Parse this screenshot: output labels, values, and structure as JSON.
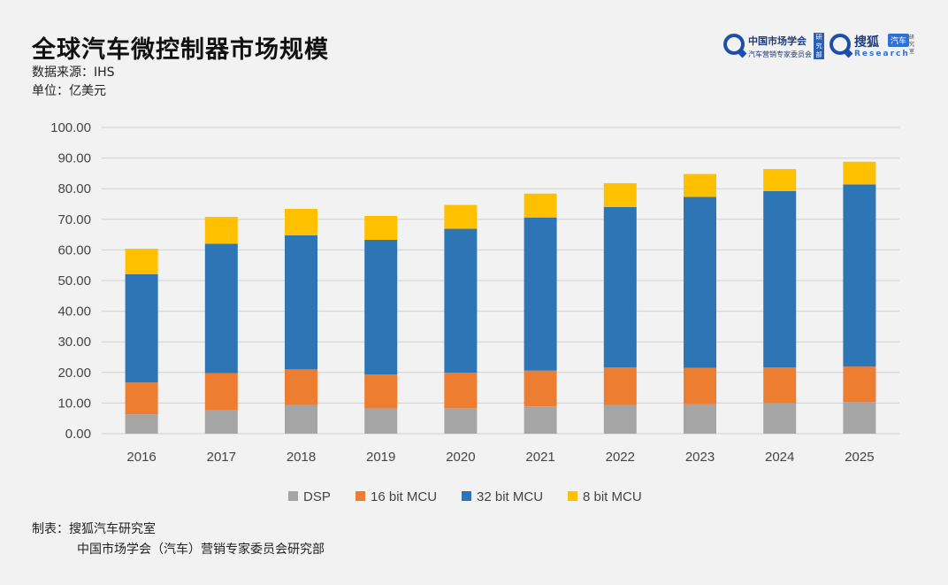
{
  "header": {
    "title": "全球汽车微控制器市场规模",
    "source": "数据来源：IHS",
    "unit": "单位：亿美元"
  },
  "logos": {
    "org1_name": "中国市场学会",
    "org1_sub": "汽车营销专家委员会",
    "org1_dept": "研究部",
    "org2_name": "搜狐",
    "org2_tag": "汽车",
    "org2_research": "Research",
    "org2_dept": "研究室"
  },
  "footer": {
    "line1": "制表：搜狐汽车研究室",
    "line2": "中国市场学会（汽车）营销专家委员会研究部"
  },
  "chart_data": {
    "type": "bar",
    "stacked": true,
    "categories": [
      "2016",
      "2017",
      "2018",
      "2019",
      "2020",
      "2021",
      "2022",
      "2023",
      "2024",
      "2025"
    ],
    "series": [
      {
        "name": "DSP",
        "color": "#a5a5a5",
        "values": [
          6.3,
          7.8,
          9.3,
          8.2,
          8.3,
          8.9,
          9.4,
          9.6,
          9.9,
          10.3
        ]
      },
      {
        "name": "16 bit MCU",
        "color": "#ed7d31",
        "values": [
          10.4,
          12.0,
          11.7,
          11.1,
          11.6,
          11.7,
          12.2,
          11.9,
          11.7,
          11.6
        ]
      },
      {
        "name": "32 bit MCU",
        "color": "#2e75b6",
        "values": [
          35.4,
          42.2,
          43.8,
          44.0,
          47.0,
          50.0,
          52.4,
          55.8,
          57.6,
          59.5
        ]
      },
      {
        "name": "8 bit MCU",
        "color": "#ffc000",
        "values": [
          8.3,
          8.8,
          8.6,
          7.8,
          7.8,
          7.8,
          7.8,
          7.5,
          7.2,
          7.4
        ]
      }
    ],
    "ylim": [
      0,
      100
    ],
    "yticks": [
      "0.00",
      "10.00",
      "20.00",
      "30.00",
      "40.00",
      "50.00",
      "60.00",
      "70.00",
      "80.00",
      "90.00",
      "100.00"
    ],
    "grid": true,
    "legend": "bottom"
  }
}
